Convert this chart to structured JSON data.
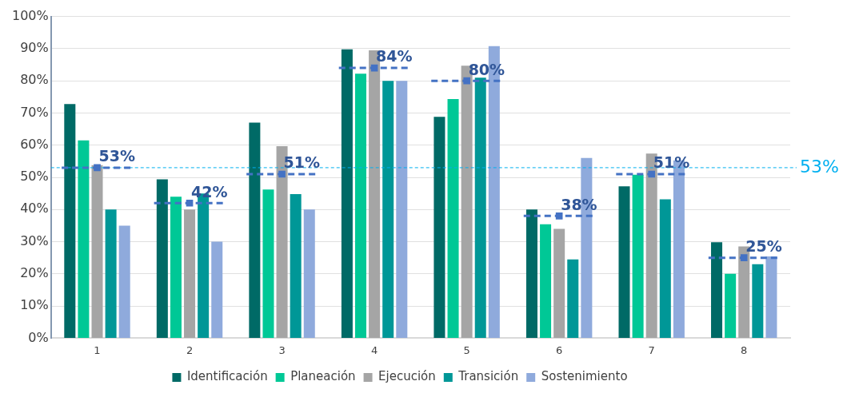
{
  "chart_data": {
    "type": "bar",
    "categories": [
      "1",
      "2",
      "3",
      "4",
      "5",
      "6",
      "7",
      "8"
    ],
    "series": [
      {
        "name": "Identificación",
        "color": "#006a66",
        "values": [
          72.8,
          49.4,
          67,
          89.8,
          68.8,
          40,
          47.2,
          29.8
        ]
      },
      {
        "name": "Planeación",
        "color": "#00c896",
        "values": [
          61.5,
          44,
          46.2,
          82.2,
          74.3,
          35.4,
          50.8,
          20
        ]
      },
      {
        "name": "Ejecución",
        "color": "#a5a5a5",
        "values": [
          53.8,
          40,
          59.7,
          89.5,
          84.7,
          34,
          57.4,
          28.5
        ]
      },
      {
        "name": "Transición",
        "color": "#009797",
        "values": [
          40,
          45,
          44.8,
          80,
          81,
          24.5,
          43.2,
          23
        ]
      },
      {
        "name": "Sostenimiento",
        "color": "#8faadc",
        "values": [
          35,
          30,
          40,
          80,
          90.8,
          56,
          55.3,
          25.4
        ]
      },
      {
        "type": "scatter",
        "marker": "square",
        "color": "#4472c4",
        "x": [
          "1",
          "2",
          "3",
          "4",
          "5",
          "6",
          "7",
          "8"
        ],
        "values": [
          53,
          42,
          51,
          84,
          80,
          38,
          51,
          25
        ],
        "value_labels": [
          "53%",
          "42%",
          "51%",
          "84%",
          "80%",
          "38%",
          "51%",
          "25%"
        ]
      }
    ],
    "ylim": [
      0,
      100
    ],
    "yticks": [
      {
        "value": 0,
        "label": "0%"
      },
      {
        "value": 10,
        "label": "10%"
      },
      {
        "value": 20,
        "label": "20%"
      },
      {
        "value": 30,
        "label": "30%"
      },
      {
        "value": 40,
        "label": "40%"
      },
      {
        "value": 50,
        "label": "50%"
      },
      {
        "value": 60,
        "label": "60%"
      },
      {
        "value": 70,
        "label": "70%"
      },
      {
        "value": 80,
        "label": "80%"
      },
      {
        "value": 90,
        "label": "90%"
      },
      {
        "value": 100,
        "label": "100%"
      }
    ],
    "grid": "y",
    "legend": "bottom",
    "ref_lines": [
      {
        "axis": "y",
        "value": 53,
        "label": "53%",
        "color": "#00b0f0",
        "line_style": "dashed"
      }
    ]
  }
}
